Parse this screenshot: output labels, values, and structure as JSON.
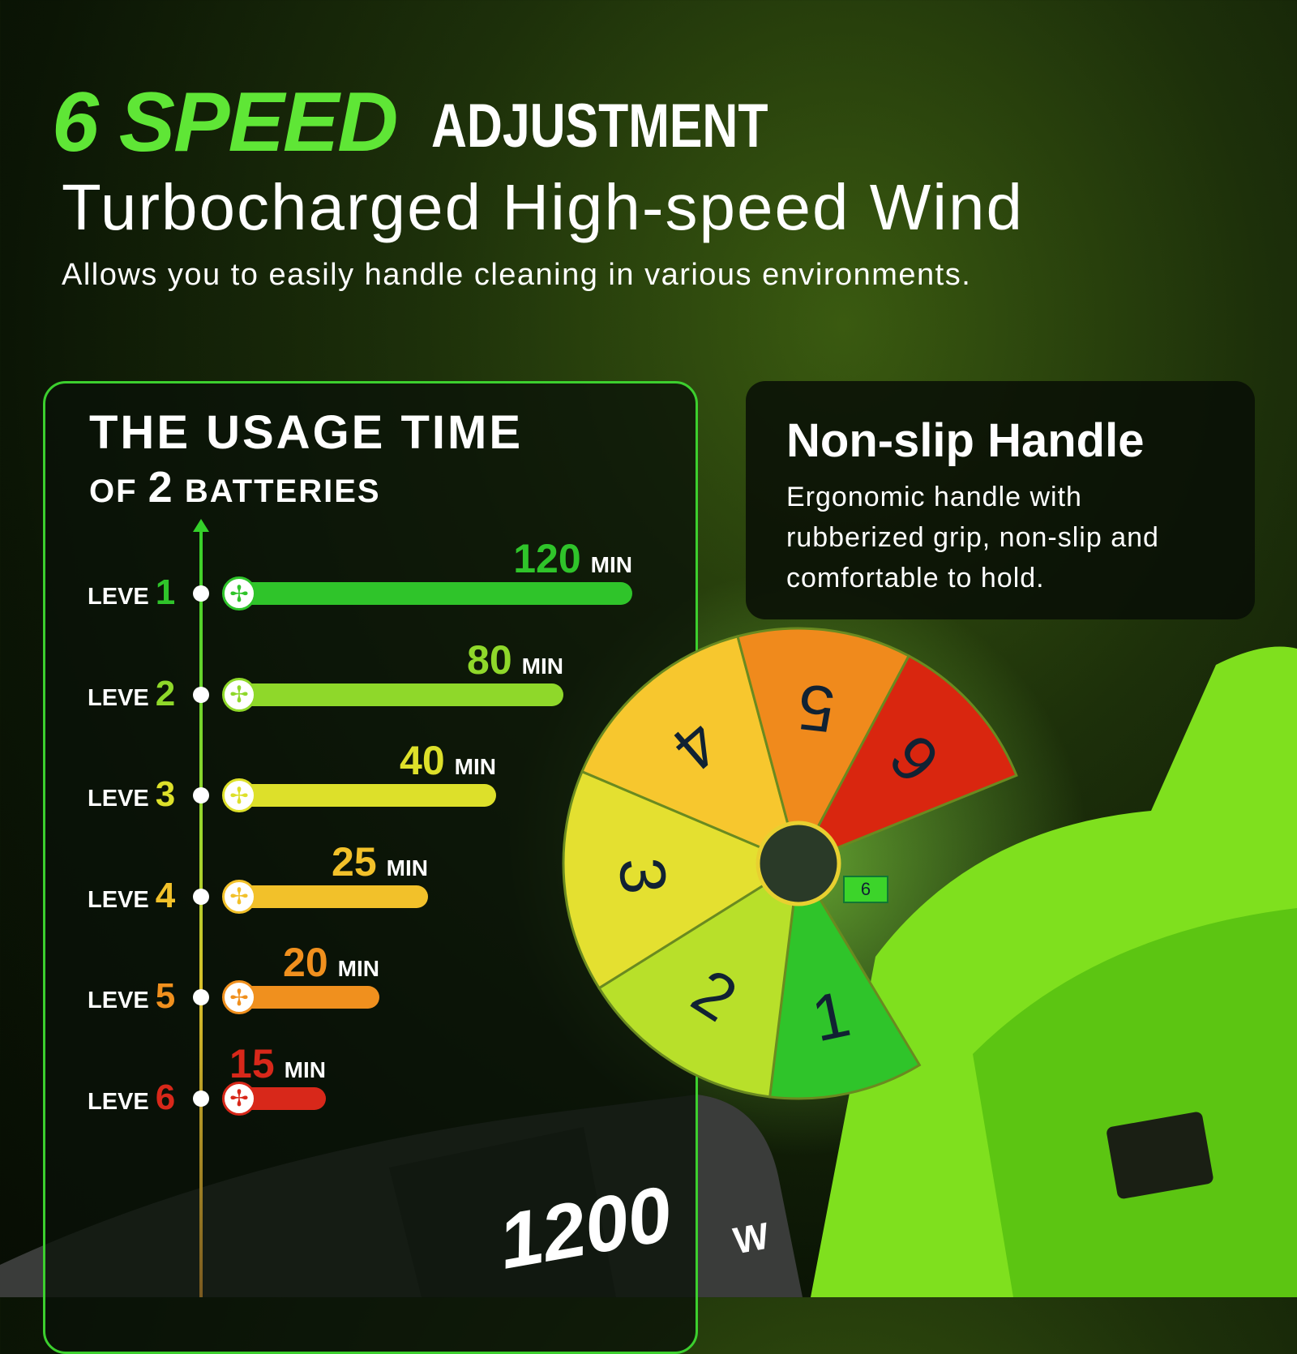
{
  "headline": {
    "accent": "6 SPEED",
    "rest": "ADJUSTMENT"
  },
  "subheadline": "Turbocharged High-speed Wind",
  "tagline": "Allows you to easily handle cleaning in various environments.",
  "usage": {
    "title": "THE USAGE TIME",
    "subtitle_prefix": "OF",
    "subtitle_number": "2",
    "subtitle_suffix": "BATTERIES",
    "level_prefix": "LEVE",
    "unit": "MIN",
    "levels": [
      {
        "level": "1",
        "minutes": "120",
        "color": "#2fc42a"
      },
      {
        "level": "2",
        "minutes": "80",
        "color": "#8fd82a"
      },
      {
        "level": "3",
        "minutes": "40",
        "color": "#dde02a"
      },
      {
        "level": "4",
        "minutes": "25",
        "color": "#f2c12a"
      },
      {
        "level": "5",
        "minutes": "20",
        "color": "#f0901e"
      },
      {
        "level": "6",
        "minutes": "15",
        "color": "#d8281a"
      }
    ]
  },
  "handle_card": {
    "title": "Non-slip Handle",
    "body": "Ergonomic handle with rubberized grip, non-slip and comfortable to hold."
  },
  "dial": {
    "segments": [
      "1",
      "2",
      "3",
      "4",
      "5",
      "6"
    ],
    "selected_display": "6"
  },
  "power": {
    "value": "1200",
    "unit": "W"
  }
}
